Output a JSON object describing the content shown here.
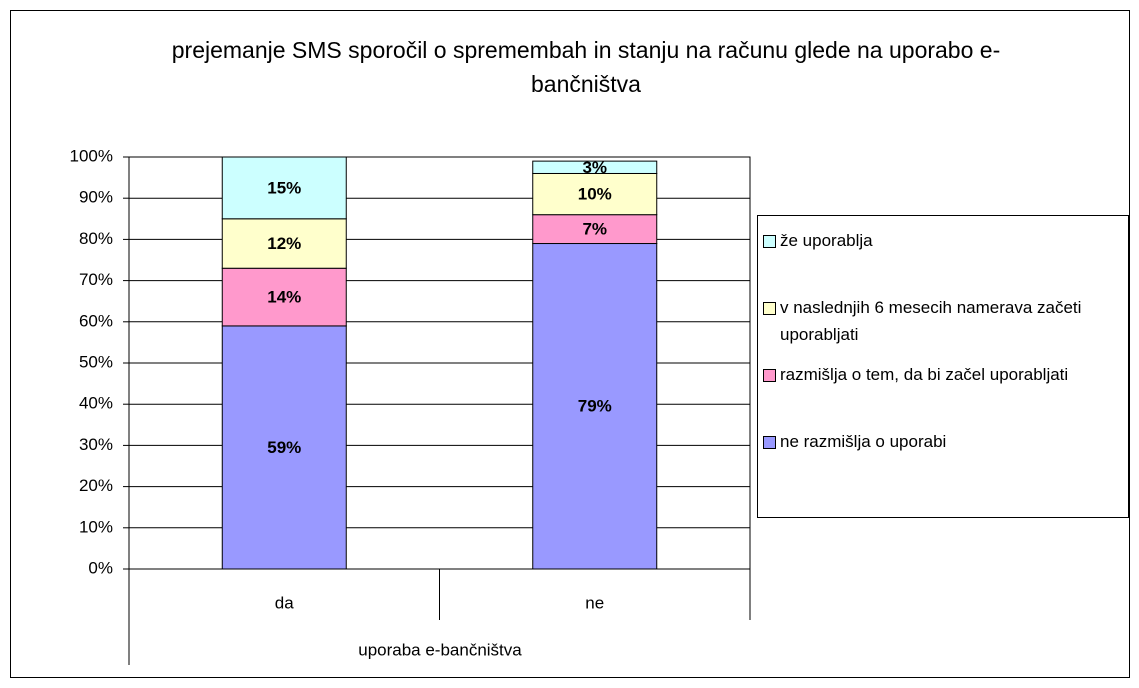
{
  "chart_data": {
    "type": "stacked_bar",
    "title": "prejemanje SMS sporočil o spremembah in stanju na računu glede na uporabo e-bančništva",
    "xlabel": "uporaba e-bančništva",
    "categories": [
      "da",
      "ne"
    ],
    "series": [
      {
        "name": "ne razmišlja o uporabi",
        "color": "#9999ff",
        "values": [
          59,
          79
        ],
        "value_labels": [
          "59%",
          "79%"
        ]
      },
      {
        "name": "razmišlja o tem, da bi začel uporabljati",
        "color": "#ff99cc",
        "values": [
          14,
          7
        ],
        "value_labels": [
          "14%",
          "7%"
        ]
      },
      {
        "name": "v naslednjih 6 mesecih namerava začeti uporabljati",
        "color": "#ffffcc",
        "values": [
          12,
          10
        ],
        "value_labels": [
          "12%",
          "10%"
        ]
      },
      {
        "name": "že uporablja",
        "color": "#ccffff",
        "values": [
          15,
          3
        ],
        "value_labels": [
          "15%",
          "3%"
        ]
      }
    ],
    "ylim": [
      0,
      100
    ],
    "yticks": [
      {
        "value": 0,
        "label": "0%"
      },
      {
        "value": 10,
        "label": "10%"
      },
      {
        "value": 20,
        "label": "20%"
      },
      {
        "value": 30,
        "label": "30%"
      },
      {
        "value": 40,
        "label": "40%"
      },
      {
        "value": 50,
        "label": "50%"
      },
      {
        "value": 60,
        "label": "60%"
      },
      {
        "value": 70,
        "label": "70%"
      },
      {
        "value": 80,
        "label": "80%"
      },
      {
        "value": 90,
        "label": "90%"
      },
      {
        "value": 100,
        "label": "100%"
      }
    ],
    "grid": true,
    "legend": "right"
  }
}
